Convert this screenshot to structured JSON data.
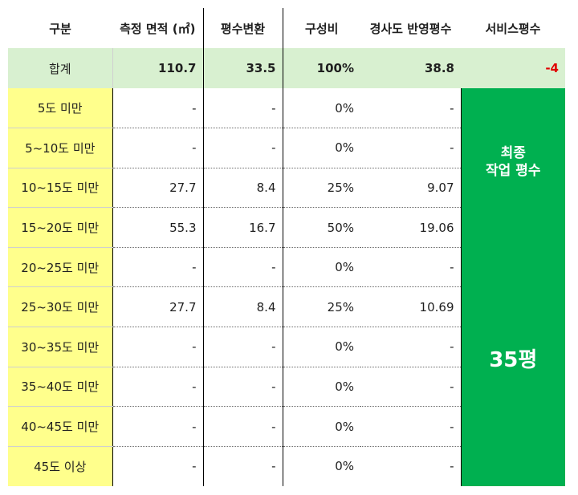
{
  "headers": [
    "구분",
    "측정 면적 (㎡)",
    "평수변환",
    "구성비",
    "경사도 반영평수",
    "서비스평수"
  ],
  "total": {
    "label": "합계",
    "area": "110.7",
    "pyeong": "33.5",
    "ratio": "100%",
    "slope": "38.8",
    "service": "-4"
  },
  "rows": [
    {
      "label": "5도 미만",
      "area": "-",
      "pyeong": "-",
      "ratio": "0%",
      "slope": "-"
    },
    {
      "label": "5~10도 미만",
      "area": "-",
      "pyeong": "-",
      "ratio": "0%",
      "slope": "-"
    },
    {
      "label": "10~15도 미만",
      "area": "27.7",
      "pyeong": "8.4",
      "ratio": "25%",
      "slope": "9.07"
    },
    {
      "label": "15~20도 미만",
      "area": "55.3",
      "pyeong": "16.7",
      "ratio": "50%",
      "slope": "19.06"
    },
    {
      "label": "20~25도 미만",
      "area": "-",
      "pyeong": "-",
      "ratio": "0%",
      "slope": "-"
    },
    {
      "label": "25~30도 미만",
      "area": "27.7",
      "pyeong": "8.4",
      "ratio": "25%",
      "slope": "10.69"
    },
    {
      "label": "30~35도 미만",
      "area": "-",
      "pyeong": "-",
      "ratio": "0%",
      "slope": "-"
    },
    {
      "label": "35~40도 미만",
      "area": "-",
      "pyeong": "-",
      "ratio": "0%",
      "slope": "-"
    },
    {
      "label": "40~45도 미만",
      "area": "-",
      "pyeong": "-",
      "ratio": "0%",
      "slope": "-"
    },
    {
      "label": "45도 이상",
      "area": "-",
      "pyeong": "-",
      "ratio": "0%",
      "slope": "-"
    }
  ],
  "final": {
    "label_line1": "최종",
    "label_line2": "작업 평수",
    "value": "35평"
  },
  "colors": {
    "label_fill": "#ffff8c",
    "total_fill": "#d8f0d0",
    "final_fill": "#00b050",
    "negative": "#e00000"
  }
}
